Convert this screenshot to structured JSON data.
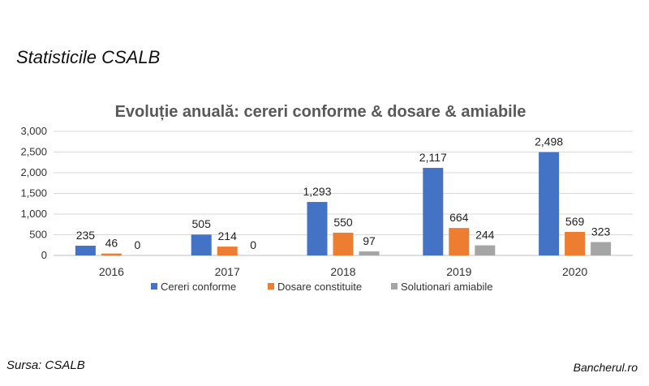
{
  "page": {
    "heading": "Statisticile CSALB",
    "source": "Sursa: CSALB",
    "brand": "Bancherul.ro"
  },
  "chart_data": {
    "type": "bar",
    "title": "Evoluție anuală: cereri conforme & dosare & amiabile",
    "xlabel": "",
    "ylabel": "",
    "categories": [
      "2016",
      "2017",
      "2018",
      "2019",
      "2020"
    ],
    "ylim": [
      0,
      3000
    ],
    "yticks": [
      0,
      500,
      1000,
      1500,
      2000,
      2500,
      3000
    ],
    "ytick_labels": [
      "0",
      "500",
      "1,000",
      "1,500",
      "2,000",
      "2,500",
      "3,000"
    ],
    "grid": true,
    "legend_position": "bottom",
    "series": [
      {
        "name": "Cereri conforme",
        "color": "#4472C4",
        "values": [
          235,
          505,
          1293,
          2117,
          2498
        ],
        "labels": [
          "235",
          "505",
          "1,293",
          "2,117",
          "2,498"
        ]
      },
      {
        "name": "Dosare constituite",
        "color": "#ED7D31",
        "values": [
          46,
          214,
          550,
          664,
          569
        ],
        "labels": [
          "46",
          "214",
          "550",
          "664",
          "569"
        ]
      },
      {
        "name": "Solutionari amiabile",
        "color": "#A5A5A5",
        "values": [
          0,
          0,
          97,
          244,
          323
        ],
        "labels": [
          "0",
          "0",
          "97",
          "244",
          "323"
        ]
      }
    ]
  }
}
